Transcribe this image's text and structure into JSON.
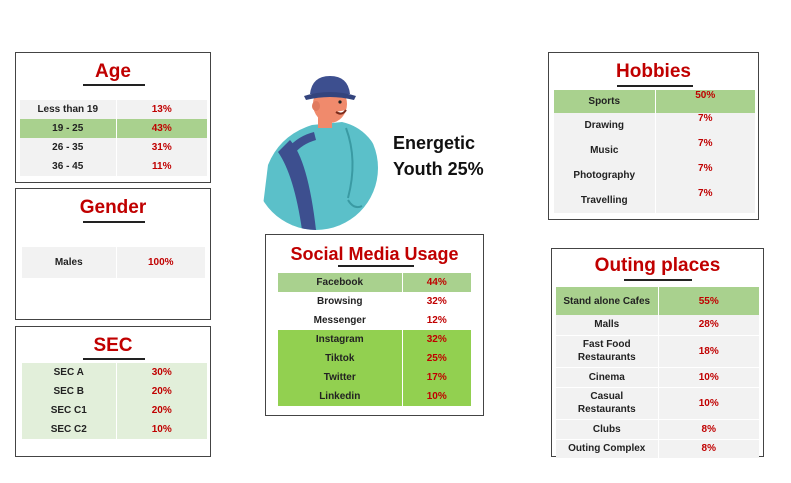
{
  "age": {
    "title": "Age",
    "rows": [
      {
        "label": "Less than 19",
        "value": "13%"
      },
      {
        "label": "19 - 25",
        "value": "43%"
      },
      {
        "label": "26 - 35",
        "value": "31%"
      },
      {
        "label": "36 - 45",
        "value": "11%"
      }
    ]
  },
  "gender": {
    "title": "Gender",
    "rows": [
      {
        "label": "Males",
        "value": "100%"
      }
    ]
  },
  "sec": {
    "title": "SEC",
    "rows": [
      {
        "label": "SEC A",
        "value": "30%"
      },
      {
        "label": "SEC B",
        "value": "20%"
      },
      {
        "label": "SEC C1",
        "value": "20%"
      },
      {
        "label": "SEC C2",
        "value": "10%"
      }
    ]
  },
  "persona": {
    "line1": "Energetic",
    "line2": "Youth 25%"
  },
  "social": {
    "title": "Social Media Usage",
    "rows": [
      {
        "label": "Facebook",
        "value": "44%"
      },
      {
        "label": "Browsing",
        "value": "32%"
      },
      {
        "label": "Messenger",
        "value": "12%"
      },
      {
        "label": "Instagram",
        "value": "32%"
      },
      {
        "label": "Tiktok",
        "value": "25%"
      },
      {
        "label": "Twitter",
        "value": "17%"
      },
      {
        "label": "Linkedin",
        "value": "10%"
      }
    ]
  },
  "hobbies": {
    "title": "Hobbies",
    "rows": [
      {
        "label": "Sports",
        "value": "50%"
      },
      {
        "label": "Drawing",
        "value": "7%"
      },
      {
        "label": "Music",
        "value": "7%"
      },
      {
        "label": "Photography",
        "value": "7%"
      },
      {
        "label": "Travelling",
        "value": "7%"
      }
    ]
  },
  "outing": {
    "title": "Outing places",
    "rows": [
      {
        "label": "Stand alone Cafes",
        "value": "55%"
      },
      {
        "label": "Malls",
        "value": "28%"
      },
      {
        "label": "Fast Food Restaurants",
        "value": "18%"
      },
      {
        "label": "Cinema",
        "value": "10%"
      },
      {
        "label": "Casual Restaurants",
        "value": "10%"
      },
      {
        "label": "Clubs",
        "value": "8%"
      },
      {
        "label": "Outing Complex",
        "value": "8%"
      }
    ]
  },
  "colors": {
    "accent": "#c00000",
    "highlight": "#a9d18e",
    "highlight_strong": "#92d050",
    "row_gray": "#f2f2f2",
    "row_green": "#e2efda"
  },
  "icons": {
    "persona": "young-man-bucket-hat-illustration"
  }
}
